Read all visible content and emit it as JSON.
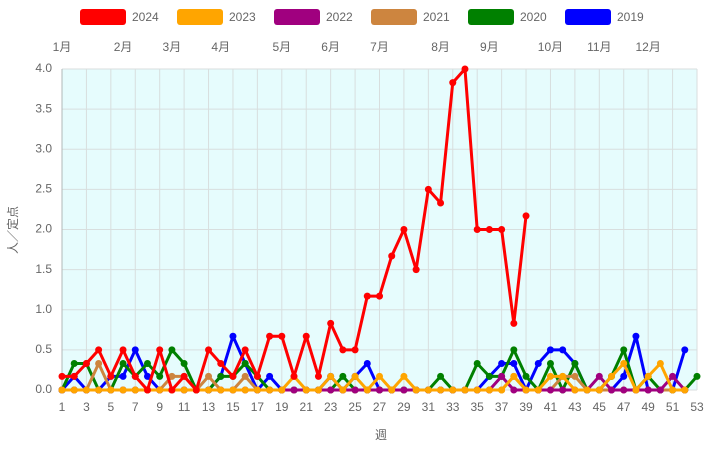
{
  "chart_data": {
    "type": "line",
    "x_title": "週",
    "y_title": "人／定点",
    "x": [
      1,
      2,
      3,
      4,
      5,
      6,
      7,
      8,
      9,
      10,
      11,
      12,
      13,
      14,
      15,
      16,
      17,
      18,
      19,
      20,
      21,
      22,
      23,
      24,
      25,
      26,
      27,
      28,
      29,
      30,
      31,
      32,
      33,
      34,
      35,
      36,
      37,
      38,
      39,
      40,
      41,
      42,
      43,
      44,
      45,
      46,
      47,
      48,
      49,
      50,
      51,
      52,
      53
    ],
    "xlim": [
      1,
      53
    ],
    "xticks": [
      1,
      3,
      5,
      7,
      9,
      11,
      13,
      15,
      17,
      19,
      21,
      23,
      25,
      27,
      29,
      31,
      33,
      35,
      37,
      39,
      41,
      43,
      45,
      47,
      49,
      51,
      53
    ],
    "x2ticks": [
      {
        "value": 1,
        "label": "1月"
      },
      {
        "value": 6,
        "label": "2月"
      },
      {
        "value": 10,
        "label": "3月"
      },
      {
        "value": 14,
        "label": "4月"
      },
      {
        "value": 19,
        "label": "5月"
      },
      {
        "value": 23,
        "label": "6月"
      },
      {
        "value": 27,
        "label": "7月"
      },
      {
        "value": 32,
        "label": "8月"
      },
      {
        "value": 36,
        "label": "9月"
      },
      {
        "value": 41,
        "label": "10月"
      },
      {
        "value": 45,
        "label": "11月"
      },
      {
        "value": 49,
        "label": "12月"
      }
    ],
    "ylim": [
      0,
      4
    ],
    "yticks": [
      {
        "value": 0,
        "label": "0.0"
      },
      {
        "value": 0.5,
        "label": "0.5"
      },
      {
        "value": 1,
        "label": "1.0"
      },
      {
        "value": 1.5,
        "label": "1.5"
      },
      {
        "value": 2,
        "label": "2.0"
      },
      {
        "value": 2.5,
        "label": "2.5"
      },
      {
        "value": 3,
        "label": "3.0"
      },
      {
        "value": 3.5,
        "label": "3.5"
      },
      {
        "value": 4,
        "label": "4.0"
      }
    ],
    "grid": true,
    "series": [
      {
        "name": "2024",
        "color": "#ff0000",
        "values": [
          0.17,
          0.17,
          0.33,
          0.5,
          0.17,
          0.5,
          0.17,
          0,
          0.5,
          0,
          0.17,
          0,
          0.5,
          0.33,
          0.17,
          0.5,
          0.17,
          0.67,
          0.67,
          0.17,
          0.67,
          0.17,
          0.83,
          0.5,
          0.5,
          1.17,
          1.17,
          1.67,
          2.0,
          1.5,
          2.5,
          2.33,
          3.83,
          4.0,
          2.0,
          2.0,
          2.0,
          0.83,
          2.17,
          null,
          null,
          null,
          null,
          null,
          null,
          null,
          null,
          null,
          null,
          null,
          null,
          null,
          null
        ]
      },
      {
        "name": "2023",
        "color": "#ffa500",
        "values": [
          0,
          0,
          0,
          0,
          0,
          0,
          0,
          0,
          0,
          0,
          0,
          0,
          0,
          0,
          0,
          0,
          0,
          0,
          0,
          0.17,
          0,
          0,
          0.17,
          0,
          0.17,
          0,
          0.17,
          0,
          0.17,
          0,
          0,
          0,
          0,
          0,
          0,
          0,
          0,
          0.17,
          0,
          0,
          0.17,
          0.17,
          0,
          0,
          0,
          0.17,
          0.33,
          0,
          0.17,
          0.33,
          0,
          0,
          null
        ]
      },
      {
        "name": "2022",
        "color": "#a0007f",
        "values": [
          0,
          0,
          0,
          0,
          0,
          0,
          0,
          0,
          0,
          0,
          0,
          0,
          0,
          0,
          0,
          0,
          0,
          0,
          0,
          0,
          0,
          0,
          0,
          0,
          0,
          0,
          0,
          0,
          0,
          0,
          0,
          0,
          0,
          0,
          0,
          0,
          0.17,
          0,
          0,
          0,
          0,
          0,
          0,
          0,
          0.17,
          0,
          0,
          0,
          0,
          0,
          0.17,
          0,
          null
        ]
      },
      {
        "name": "2021",
        "color": "#cd853f",
        "values": [
          0,
          0,
          0,
          0.33,
          0,
          0,
          0,
          0,
          0,
          0.17,
          0.17,
          0,
          0.17,
          0,
          0,
          0.17,
          0,
          0,
          0,
          0,
          0,
          0,
          0,
          0,
          0,
          0,
          0,
          0,
          0,
          0,
          0,
          0,
          0,
          0,
          0,
          0,
          0,
          0.17,
          0,
          0,
          0,
          0.17,
          0.17,
          0,
          0,
          0,
          0,
          0,
          0,
          0,
          0,
          0,
          null
        ]
      },
      {
        "name": "2020",
        "color": "#008000",
        "values": [
          0,
          0.33,
          0.33,
          0,
          0,
          0.33,
          0.17,
          0.33,
          0.17,
          0.5,
          0.33,
          0,
          0,
          0.17,
          0.17,
          0.33,
          0.17,
          0,
          0,
          0,
          0,
          0,
          0,
          0.17,
          0,
          0,
          0,
          0,
          0,
          0,
          0,
          0.17,
          0,
          0,
          0.33,
          0.17,
          0.17,
          0.5,
          0.17,
          0,
          0.33,
          0,
          0.33,
          0,
          0,
          0.17,
          0.5,
          0,
          0.17,
          0,
          0,
          0,
          0.17
        ]
      },
      {
        "name": "2019",
        "color": "#0000ff",
        "values": [
          0,
          0.17,
          0,
          0,
          0.17,
          0.17,
          0.5,
          0.17,
          0,
          0,
          0,
          0,
          0,
          0.17,
          0.67,
          0.33,
          0,
          0.17,
          0,
          0,
          0,
          0,
          0.17,
          0,
          0.17,
          0.33,
          0,
          0,
          0,
          0,
          0,
          0,
          0,
          0,
          0,
          0.17,
          0.33,
          0.33,
          0,
          0.33,
          0.5,
          0.5,
          0.33,
          0,
          0,
          0,
          0.17,
          0.67,
          0,
          0,
          0,
          0.5,
          null
        ]
      }
    ]
  }
}
